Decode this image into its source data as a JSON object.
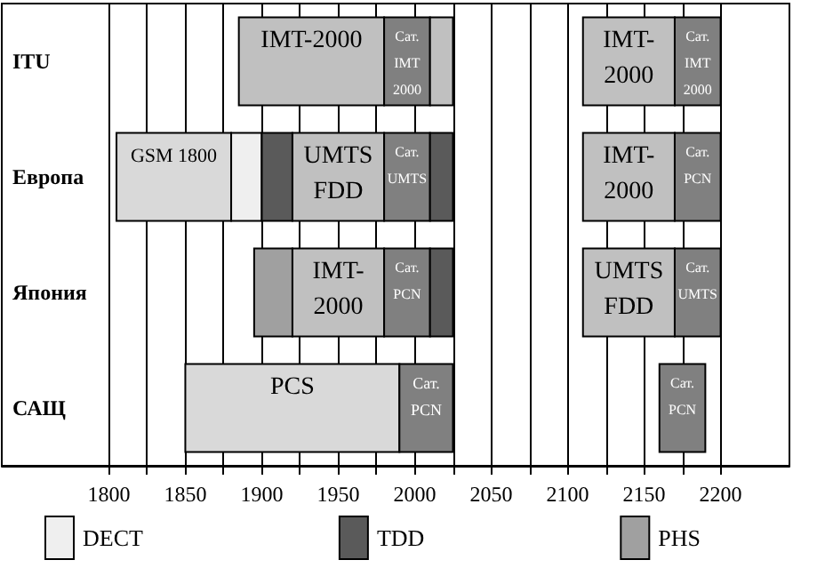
{
  "chart_data": {
    "type": "bar",
    "orientation": "horizontal",
    "categories": [
      "ITU",
      "Европа",
      "Япония",
      "САЩ"
    ],
    "xlim": [
      1730,
      2245
    ],
    "xticks": [
      1800,
      {
        "value": 1825,
        "label": null
      },
      1850,
      {
        "value": 1875,
        "label": null
      },
      1900,
      {
        "value": 1925,
        "label": null
      },
      1950,
      {
        "value": 1975,
        "label": null
      },
      2000,
      {
        "value": 2025,
        "label": null
      },
      2050,
      {
        "value": 2075,
        "label": null
      },
      2100,
      {
        "value": 2125,
        "label": null
      },
      2150,
      {
        "value": 2175,
        "label": null
      },
      2200
    ],
    "grid": "x",
    "legend": "bottom",
    "series": [
      {
        "color": "#d9d9d9",
        "base": [
          null,
          1805,
          null,
          1850
        ],
        "values": [
          null,
          75,
          null,
          140
        ],
        "value_labels": [
          null,
          "GSM 1800",
          null,
          "PCS"
        ]
      },
      {
        "color": "#c0c0c0",
        "base": [
          1885,
          1920,
          1920,
          null
        ],
        "values": [
          95,
          60,
          60,
          null
        ],
        "value_labels": [
          "IMT-2000",
          "UMTS\nFDD",
          "IMT-\n2000",
          null
        ]
      },
      {
        "color": "#808080",
        "base": [
          1980,
          1980,
          1980,
          1990
        ],
        "values": [
          30,
          30,
          30,
          35
        ],
        "value_labels": [
          "Сат.\nIMT\n2000",
          "Сат.\nUMTS",
          "Сат.\nPCN",
          "Сат.\nPCN"
        ]
      },
      {
        "color": "#c0c0c0",
        "base": [
          2010,
          null,
          null,
          null
        ],
        "values": [
          15,
          null,
          null,
          null
        ]
      },
      {
        "color": "#c0c0c0",
        "base": [
          2110,
          2110,
          2110,
          null
        ],
        "values": [
          60,
          60,
          60,
          null
        ],
        "value_labels": [
          "IMT-\n2000",
          "IMT-\n2000",
          "UMTS\nFDD",
          null
        ]
      },
      {
        "color": "#808080",
        "base": [
          2170,
          2170,
          2170,
          2160
        ],
        "values": [
          30,
          30,
          30,
          30
        ],
        "value_labels": [
          "Сат.\nIMT\n2000",
          "Сат.\nPCN",
          "Сат.\nUMTS",
          "Сат.\nPCN"
        ]
      },
      {
        "name": "DECT",
        "color": "#efefef",
        "base": [
          null,
          1880,
          null,
          null
        ],
        "values": [
          null,
          20,
          null,
          null
        ]
      },
      {
        "name": "TDD",
        "color": "#5a5a5a",
        "base": [
          null,
          1900,
          null,
          null
        ],
        "values": [
          null,
          20,
          null,
          null
        ]
      },
      {
        "color": "#5a5a5a",
        "base": [
          null,
          2010,
          2010,
          null
        ],
        "values": [
          null,
          15,
          15,
          null
        ]
      },
      {
        "name": "PHS",
        "color": "#a0a0a0",
        "base": [
          null,
          null,
          1895,
          null
        ],
        "values": [
          null,
          null,
          25,
          null
        ]
      }
    ]
  }
}
